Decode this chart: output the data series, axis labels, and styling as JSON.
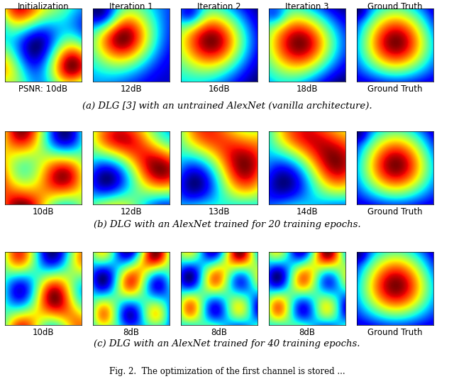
{
  "col_headers": [
    "Initialization",
    "Iteration 1",
    "Iteration 2",
    "Iteration 3",
    "Ground Truth"
  ],
  "row_a_labels": [
    "PSNR: 10dB",
    "12dB",
    "16dB",
    "18dB",
    "Ground Truth"
  ],
  "row_b_labels": [
    "10dB",
    "12dB",
    "13dB",
    "14dB",
    "Ground Truth"
  ],
  "row_c_labels": [
    "10dB",
    "8dB",
    "8dB",
    "8dB",
    "Ground Truth"
  ],
  "caption_a": "(a) DLG [3] with an untrained AlexNet (vanilla architecture).",
  "caption_b": "(b) DLG with an AlexNet trained for 20 training epochs.",
  "caption_c": "(c) DLG with an AlexNet trained for 40 training epochs.",
  "font_size_header": 8.5,
  "font_size_label": 8.5,
  "font_size_caption": 9.5,
  "font_size_fig": 8.5
}
